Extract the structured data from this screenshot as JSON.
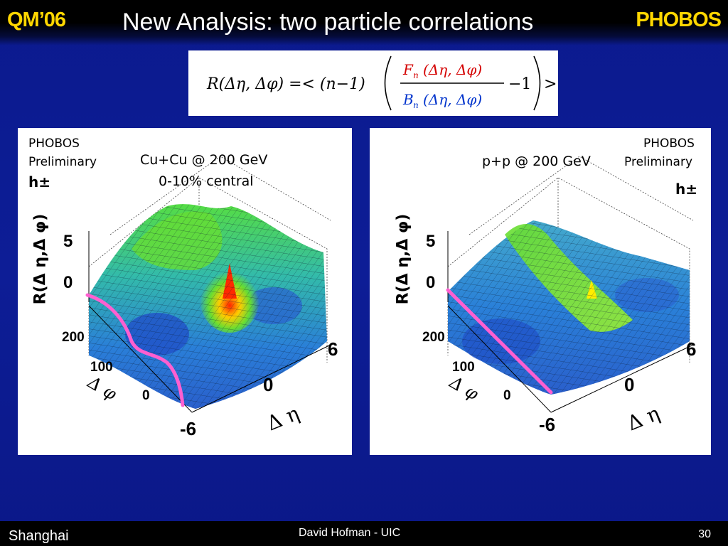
{
  "header": {
    "conference": "QM’06",
    "title": "New Analysis: two particle correlations",
    "brand": "PHOBOS"
  },
  "formula": {
    "lhs": "R(Δη, Δφ) =< (n−1)",
    "numerator": "F",
    "numerator_sub": "n",
    "numerator_args": "(Δη, Δφ)",
    "denominator": "B",
    "denominator_sub": "n",
    "denominator_args": "(Δη, Δφ)",
    "tail": "−1",
    "close": ">"
  },
  "panels": [
    {
      "preliminary_line1": "PHOBOS",
      "preliminary_line2": "Preliminary",
      "system": "Cu+Cu @ 200 GeV",
      "centrality": "0-10% central",
      "particles": "h±",
      "zaxis_label": "R(Δ η,Δ φ)",
      "z_ticks": [
        "5",
        "0"
      ],
      "phi_ticks": [
        "200",
        "100",
        "0"
      ],
      "phi_label": "Δ φ",
      "eta_ticks": [
        "6",
        "0",
        "-6"
      ],
      "eta_label": "Δ η"
    },
    {
      "preliminary_line1": "PHOBOS",
      "preliminary_line2": "Preliminary",
      "system": "p+p @ 200 GeV",
      "particles": "h±",
      "zaxis_label": "R(Δ η,Δ φ)",
      "z_ticks": [
        "5",
        "0"
      ],
      "phi_ticks": [
        "200",
        "100",
        "0"
      ],
      "phi_label": "Δ φ",
      "eta_ticks": [
        "6",
        "0",
        "-6"
      ],
      "eta_label": "Δ η"
    }
  ],
  "footer": {
    "location": "Shanghai",
    "author": "David Hofman - UIC",
    "page": "30"
  },
  "colors": {
    "background": "#0b1a8e",
    "accent": "#ffd700",
    "highlight_line": "#ff5fd0"
  }
}
